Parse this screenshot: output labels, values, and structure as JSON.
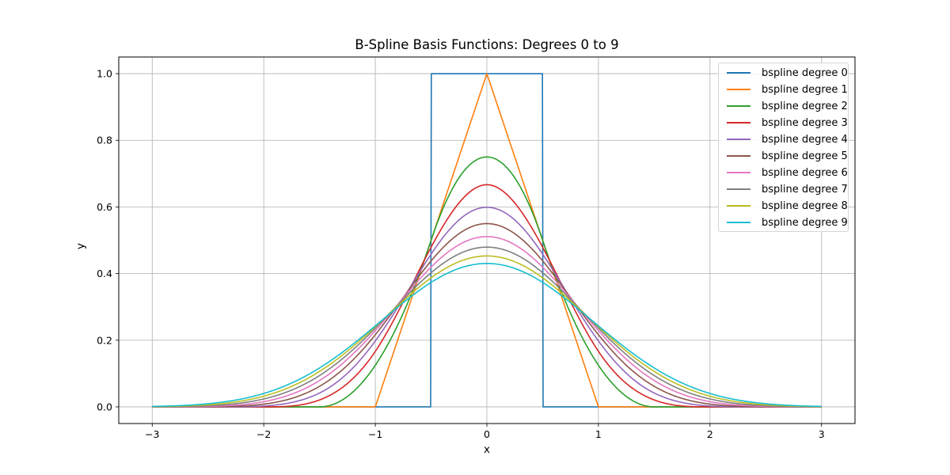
{
  "chart_data": {
    "type": "line",
    "title": "B-Spline Basis Functions: Degrees 0 to 9",
    "xlabel": "x",
    "ylabel": "y",
    "xlim": [
      -3.3,
      3.3
    ],
    "ylim": [
      -0.05,
      1.05
    ],
    "x_range_plotted": [
      -3,
      3
    ],
    "xticks": [
      -3,
      -2,
      -1,
      0,
      1,
      2,
      3
    ],
    "xtick_labels": [
      "−3",
      "−2",
      "−1",
      "0",
      "1",
      "2",
      "3"
    ],
    "yticks": [
      0.0,
      0.2,
      0.4,
      0.6,
      0.8,
      1.0
    ],
    "ytick_labels": [
      "0.0",
      "0.2",
      "0.4",
      "0.6",
      "0.8",
      "1.0"
    ],
    "grid": true,
    "legend_position": "upper right",
    "series": [
      {
        "name": "bspline degree 0",
        "degree": 0,
        "color": "#1f77b4",
        "peak": 1.0
      },
      {
        "name": "bspline degree 1",
        "degree": 1,
        "color": "#ff7f0e",
        "peak": 1.0
      },
      {
        "name": "bspline degree 2",
        "degree": 2,
        "color": "#2ca02c",
        "peak": 0.75
      },
      {
        "name": "bspline degree 3",
        "degree": 3,
        "color": "#d62728",
        "peak": 0.667
      },
      {
        "name": "bspline degree 4",
        "degree": 4,
        "color": "#9467bd",
        "peak": 0.599
      },
      {
        "name": "bspline degree 5",
        "degree": 5,
        "color": "#8c564b",
        "peak": 0.55
      },
      {
        "name": "bspline degree 6",
        "degree": 6,
        "color": "#e377c2",
        "peak": 0.511
      },
      {
        "name": "bspline degree 7",
        "degree": 7,
        "color": "#7f7f7f",
        "peak": 0.479
      },
      {
        "name": "bspline degree 8",
        "degree": 8,
        "color": "#bcbd22",
        "peak": 0.453
      },
      {
        "name": "bspline degree 9",
        "degree": 9,
        "color": "#17becf",
        "peak": 0.431
      }
    ]
  },
  "legend": {
    "items": [
      {
        "label": "bspline degree 0",
        "color": "#1f77b4"
      },
      {
        "label": "bspline degree 1",
        "color": "#ff7f0e"
      },
      {
        "label": "bspline degree 2",
        "color": "#2ca02c"
      },
      {
        "label": "bspline degree 3",
        "color": "#d62728"
      },
      {
        "label": "bspline degree 4",
        "color": "#9467bd"
      },
      {
        "label": "bspline degree 5",
        "color": "#8c564b"
      },
      {
        "label": "bspline degree 6",
        "color": "#e377c2"
      },
      {
        "label": "bspline degree 7",
        "color": "#7f7f7f"
      },
      {
        "label": "bspline degree 8",
        "color": "#bcbd22"
      },
      {
        "label": "bspline degree 9",
        "color": "#17becf"
      }
    ]
  }
}
